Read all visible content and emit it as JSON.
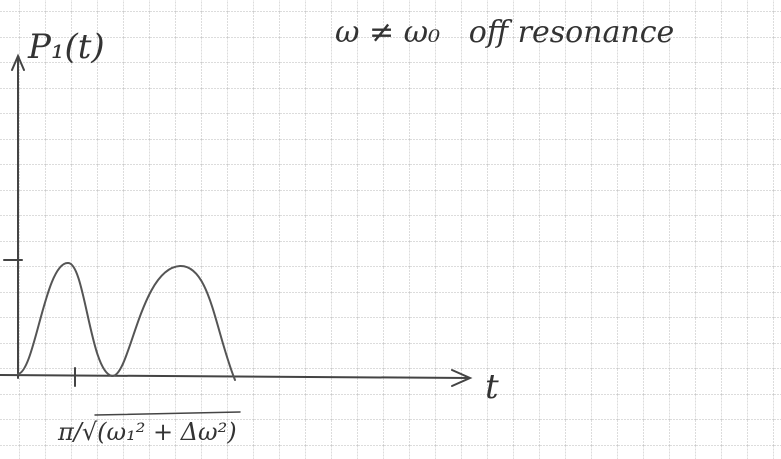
{
  "title": "ω ≠ ω₀   off resonance",
  "axes": {
    "y_label": "P₁(t)",
    "x_label": "t",
    "x_tick": "π/√(ω₁² + Δω²)"
  }
}
